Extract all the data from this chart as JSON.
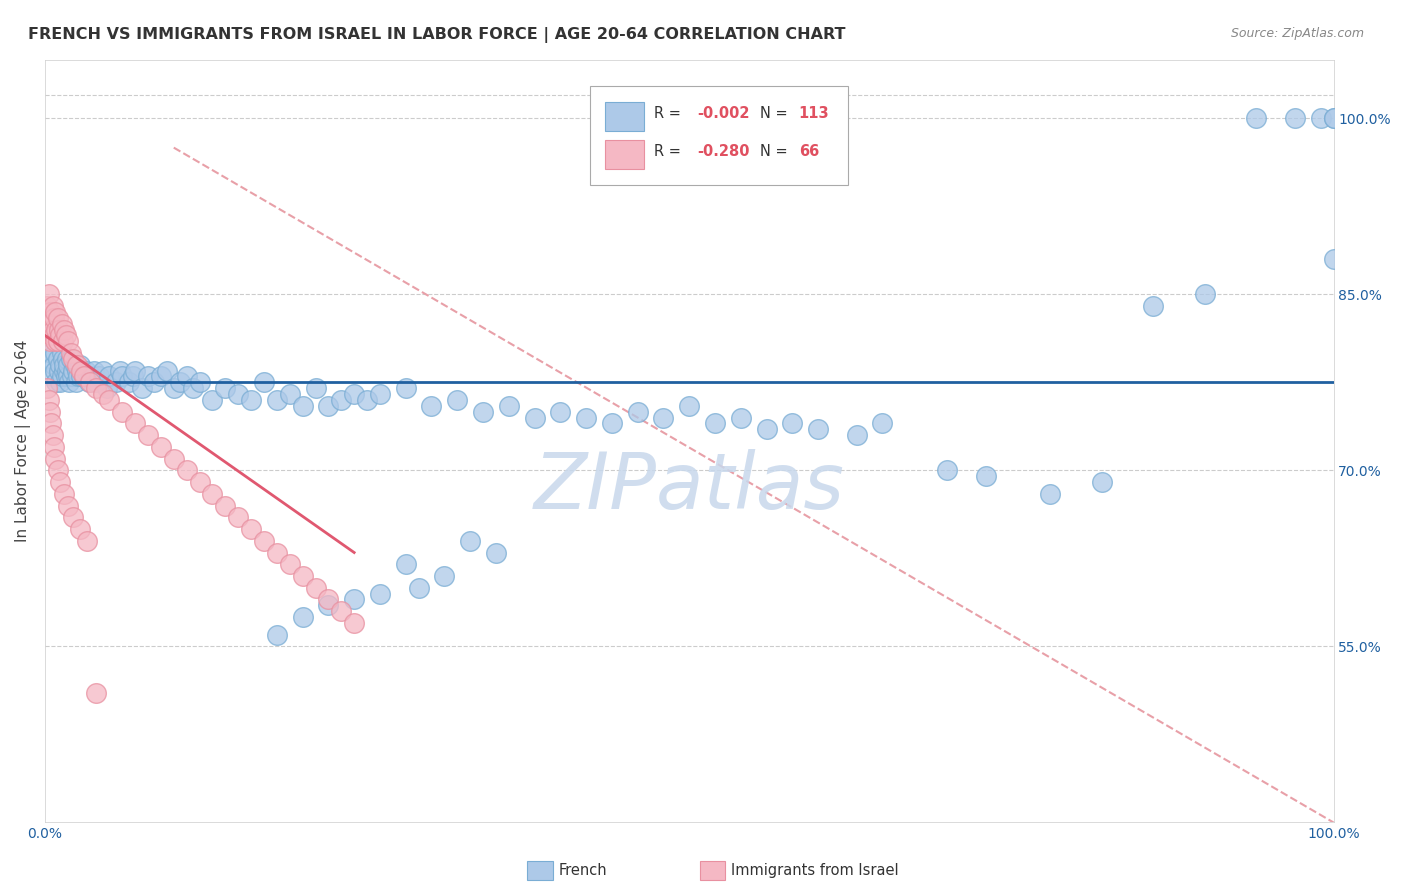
{
  "title": "FRENCH VS IMMIGRANTS FROM ISRAEL IN LABOR FORCE | AGE 20-64 CORRELATION CHART",
  "source": "Source: ZipAtlas.com",
  "ylabel": "In Labor Force | Age 20-64",
  "xmin": 0.0,
  "xmax": 1.0,
  "ymin": 0.4,
  "ymax": 1.05,
  "blue_scatter_color": "#adc9e8",
  "blue_scatter_edge": "#7aadd4",
  "pink_scatter_color": "#f5b8c4",
  "pink_scatter_edge": "#e890a0",
  "blue_line_color": "#2060a0",
  "pink_line_color": "#e05870",
  "diag_line_color": "#f0a0b0",
  "grid_color": "#cccccc",
  "watermark_color": "#c8d8ec",
  "R_blue": "-0.002",
  "N_blue": "113",
  "R_pink": "-0.280",
  "N_pink": "66",
  "legend_label_blue": "French",
  "legend_label_pink": "Immigrants from Israel",
  "axis_label_color": "#2060a0",
  "title_color": "#333333",
  "source_color": "#888888",
  "ytick_labels": [
    "55.0%",
    "70.0%",
    "85.0%",
    "100.0%"
  ],
  "ytick_values": [
    0.55,
    0.7,
    0.85,
    1.0
  ],
  "xtick_left_label": "0.0%",
  "xtick_right_label": "100.0%",
  "blue_x": [
    0.005,
    0.005,
    0.006,
    0.007,
    0.008,
    0.008,
    0.009,
    0.01,
    0.01,
    0.011,
    0.012,
    0.012,
    0.013,
    0.013,
    0.014,
    0.015,
    0.015,
    0.016,
    0.017,
    0.017,
    0.018,
    0.018,
    0.019,
    0.02,
    0.021,
    0.022,
    0.023,
    0.024,
    0.025,
    0.026,
    0.027,
    0.028,
    0.03,
    0.032,
    0.034,
    0.036,
    0.038,
    0.04,
    0.042,
    0.045,
    0.048,
    0.05,
    0.055,
    0.058,
    0.06,
    0.065,
    0.068,
    0.07,
    0.075,
    0.08,
    0.085,
    0.09,
    0.095,
    0.1,
    0.105,
    0.11,
    0.115,
    0.12,
    0.13,
    0.14,
    0.15,
    0.16,
    0.17,
    0.18,
    0.19,
    0.2,
    0.21,
    0.22,
    0.23,
    0.24,
    0.25,
    0.26,
    0.28,
    0.3,
    0.32,
    0.34,
    0.36,
    0.38,
    0.4,
    0.42,
    0.44,
    0.46,
    0.48,
    0.5,
    0.52,
    0.54,
    0.56,
    0.58,
    0.6,
    0.63,
    0.65,
    0.7,
    0.73,
    0.78,
    0.82,
    0.86,
    0.9,
    0.94,
    0.97,
    0.99,
    1.0,
    1.0,
    1.0,
    0.33,
    0.35,
    0.28,
    0.31,
    0.29,
    0.26,
    0.24,
    0.22,
    0.2,
    0.18
  ],
  "blue_y": [
    0.795,
    0.8,
    0.78,
    0.79,
    0.785,
    0.8,
    0.775,
    0.795,
    0.81,
    0.785,
    0.79,
    0.775,
    0.8,
    0.78,
    0.795,
    0.785,
    0.79,
    0.78,
    0.785,
    0.795,
    0.78,
    0.79,
    0.775,
    0.795,
    0.78,
    0.785,
    0.79,
    0.775,
    0.785,
    0.78,
    0.79,
    0.78,
    0.78,
    0.785,
    0.775,
    0.78,
    0.785,
    0.775,
    0.78,
    0.785,
    0.77,
    0.78,
    0.775,
    0.785,
    0.78,
    0.775,
    0.78,
    0.785,
    0.77,
    0.78,
    0.775,
    0.78,
    0.785,
    0.77,
    0.775,
    0.78,
    0.77,
    0.775,
    0.76,
    0.77,
    0.765,
    0.76,
    0.775,
    0.76,
    0.765,
    0.755,
    0.77,
    0.755,
    0.76,
    0.765,
    0.76,
    0.765,
    0.77,
    0.755,
    0.76,
    0.75,
    0.755,
    0.745,
    0.75,
    0.745,
    0.74,
    0.75,
    0.745,
    0.755,
    0.74,
    0.745,
    0.735,
    0.74,
    0.735,
    0.73,
    0.74,
    0.7,
    0.695,
    0.68,
    0.69,
    0.84,
    0.85,
    1.0,
    1.0,
    1.0,
    1.0,
    1.0,
    0.88,
    0.64,
    0.63,
    0.62,
    0.61,
    0.6,
    0.595,
    0.59,
    0.585,
    0.575,
    0.56
  ],
  "pink_x": [
    0.002,
    0.003,
    0.003,
    0.004,
    0.004,
    0.005,
    0.005,
    0.006,
    0.006,
    0.007,
    0.007,
    0.008,
    0.008,
    0.009,
    0.01,
    0.01,
    0.011,
    0.012,
    0.013,
    0.014,
    0.015,
    0.016,
    0.018,
    0.02,
    0.022,
    0.025,
    0.028,
    0.03,
    0.035,
    0.04,
    0.045,
    0.05,
    0.06,
    0.07,
    0.08,
    0.09,
    0.1,
    0.11,
    0.12,
    0.13,
    0.14,
    0.15,
    0.16,
    0.17,
    0.18,
    0.19,
    0.2,
    0.21,
    0.22,
    0.23,
    0.24,
    0.002,
    0.003,
    0.004,
    0.005,
    0.006,
    0.007,
    0.008,
    0.01,
    0.012,
    0.015,
    0.018,
    0.022,
    0.027,
    0.033,
    0.04
  ],
  "pink_y": [
    0.84,
    0.82,
    0.85,
    0.81,
    0.835,
    0.825,
    0.815,
    0.84,
    0.82,
    0.83,
    0.815,
    0.835,
    0.81,
    0.82,
    0.83,
    0.81,
    0.82,
    0.815,
    0.825,
    0.81,
    0.82,
    0.815,
    0.81,
    0.8,
    0.795,
    0.79,
    0.785,
    0.78,
    0.775,
    0.77,
    0.765,
    0.76,
    0.75,
    0.74,
    0.73,
    0.72,
    0.71,
    0.7,
    0.69,
    0.68,
    0.67,
    0.66,
    0.65,
    0.64,
    0.63,
    0.62,
    0.61,
    0.6,
    0.59,
    0.58,
    0.57,
    0.77,
    0.76,
    0.75,
    0.74,
    0.73,
    0.72,
    0.71,
    0.7,
    0.69,
    0.68,
    0.67,
    0.66,
    0.65,
    0.64,
    0.51
  ]
}
